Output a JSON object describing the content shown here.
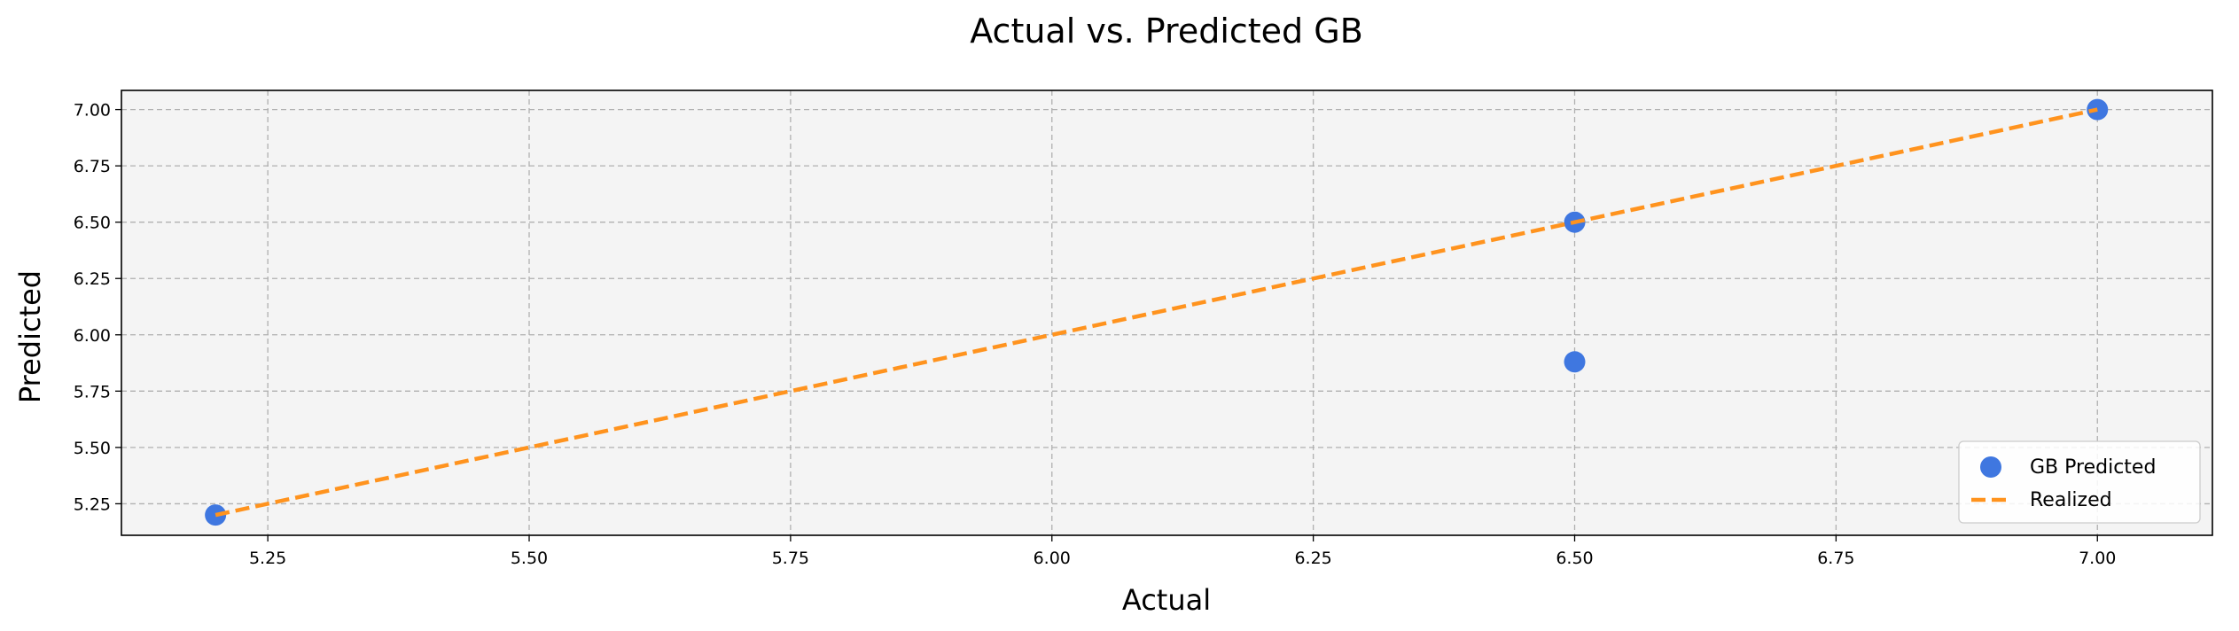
{
  "chart_data": {
    "type": "scatter",
    "title": "Actual vs. Predicted GB",
    "xlabel": "Actual",
    "ylabel": "Predicted",
    "xlim": [
      5.11,
      7.11
    ],
    "ylim": [
      5.11,
      7.085
    ],
    "xticks": [
      "5.25",
      "5.50",
      "5.75",
      "6.00",
      "6.25",
      "6.50",
      "6.75",
      "7.00"
    ],
    "yticks": [
      "5.25",
      "5.50",
      "5.75",
      "6.00",
      "6.25",
      "6.50",
      "6.75",
      "7.00"
    ],
    "grid": true,
    "legend_position": "bottom-right",
    "series": [
      {
        "name": "GB Predicted",
        "kind": "scatter",
        "color": "#3f77e0",
        "points": [
          [
            5.2,
            5.2
          ],
          [
            6.5,
            6.5
          ],
          [
            6.5,
            5.88
          ],
          [
            7.0,
            7.0
          ]
        ]
      },
      {
        "name": "Realized",
        "kind": "line",
        "style": "dashed",
        "color": "#ff931e",
        "points": [
          [
            5.2,
            5.2
          ],
          [
            7.0,
            7.0
          ]
        ]
      }
    ]
  },
  "colors": {
    "plot_background": "#f4f4f4",
    "grid": "#b0b0b0"
  }
}
